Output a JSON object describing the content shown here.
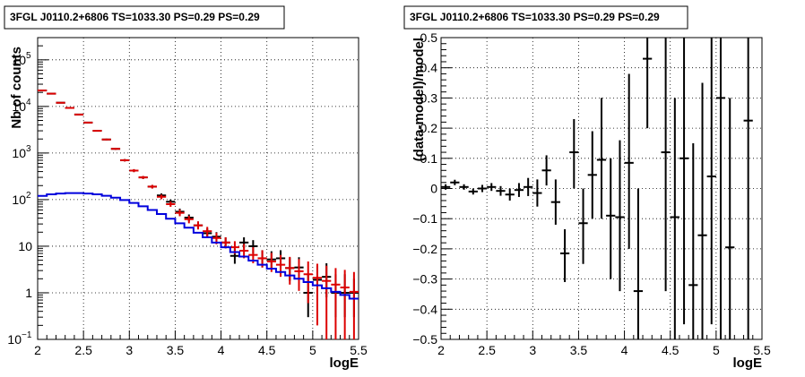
{
  "chart_data": [
    {
      "type": "scatter",
      "title": "3FGL J0110.2+6806 TS=1033.30 PS=0.29 PS=0.29",
      "xlabel": "logE",
      "ylabel": "Nb of counts",
      "xlim": [
        2,
        5.5
      ],
      "ylim": [
        0.1,
        300000
      ],
      "yscale": "log",
      "grid": true,
      "xticks": [
        "2",
        "2.5",
        "3",
        "3.5",
        "4",
        "4.5",
        "5",
        "5.5"
      ],
      "yticks": [
        {
          "value": 0.1,
          "label": "10",
          "exp": "−1"
        },
        {
          "value": 1,
          "label": "1",
          "exp": ""
        },
        {
          "value": 10,
          "label": "10",
          "exp": ""
        },
        {
          "value": 100,
          "label": "10",
          "exp": "2"
        },
        {
          "value": 1000,
          "label": "10",
          "exp": "3"
        },
        {
          "value": 10000,
          "label": "10",
          "exp": "4"
        },
        {
          "value": 100000,
          "label": "10",
          "exp": "5"
        }
      ],
      "series": [
        {
          "color": "#000000",
          "style": "points",
          "points": [
            [
              2.05,
              22000,
              22300,
              21700
            ],
            [
              2.15,
              18800,
              19100,
              18500
            ],
            [
              2.25,
              12000,
              12300,
              11700
            ],
            [
              2.35,
              9300,
              9500,
              9100
            ],
            [
              2.45,
              6700,
              6850,
              6550
            ],
            [
              2.55,
              4500,
              4620,
              4380
            ],
            [
              2.65,
              3000,
              3100,
              2900
            ],
            [
              2.75,
              1950,
              2030,
              1870
            ],
            [
              2.85,
              1230,
              1290,
              1170
            ],
            [
              2.95,
              700,
              740,
              660
            ],
            [
              3.05,
              420,
              450,
              390
            ],
            [
              3.15,
              300,
              322,
              278
            ],
            [
              3.25,
              190,
              207,
              173
            ],
            [
              3.35,
              123,
              136,
              110
            ],
            [
              3.45,
              90,
              101,
              79
            ],
            [
              3.55,
              55,
              64,
              47
            ],
            [
              3.65,
              41,
              48,
              34
            ],
            [
              3.75,
              28,
              34,
              23
            ],
            [
              3.85,
              19,
              24,
              15
            ],
            [
              3.95,
              16,
              20,
              12
            ],
            [
              4.05,
              12,
              15.5,
              9
            ],
            [
              4.15,
              6.2,
              8.8,
              4.2
            ],
            [
              4.25,
              12,
              15.5,
              9
            ],
            [
              4.35,
              10,
              13.5,
              7
            ],
            [
              4.45,
              5.5,
              8.2,
              3.5
            ],
            [
              4.55,
              5.2,
              7.8,
              3.2
            ],
            [
              4.65,
              5.5,
              8.2,
              3.5
            ],
            [
              4.75,
              3.4,
              5.7,
              1.8
            ],
            [
              4.85,
              3.5,
              5.8,
              1.9
            ],
            [
              4.95,
              1.0,
              2.5,
              0.3
            ],
            [
              5.05,
              1.9,
              3.8,
              0.7
            ],
            [
              5.15,
              2.2,
              4.3,
              0.8
            ],
            [
              5.25,
              1.0,
              2.5,
              0.3
            ],
            [
              5.35,
              1.0,
              2.5,
              0.3
            ],
            [
              5.45,
              1.0,
              2.0,
              0.3
            ]
          ]
        },
        {
          "color": "#dd0000",
          "style": "points",
          "points": [
            [
              2.05,
              22000,
              22300,
              21700
            ],
            [
              2.15,
              18800,
              19100,
              18500
            ],
            [
              2.25,
              12000,
              12300,
              11700
            ],
            [
              2.35,
              9300,
              9500,
              9100
            ],
            [
              2.45,
              6700,
              6850,
              6550
            ],
            [
              2.55,
              4500,
              4620,
              4380
            ],
            [
              2.65,
              3000,
              3100,
              2900
            ],
            [
              2.75,
              1950,
              2030,
              1870
            ],
            [
              2.85,
              1230,
              1290,
              1170
            ],
            [
              2.95,
              700,
              740,
              660
            ],
            [
              3.05,
              420,
              450,
              390
            ],
            [
              3.15,
              300,
              322,
              278
            ],
            [
              3.25,
              190,
              207,
              173
            ],
            [
              3.35,
              115,
              128,
              102
            ],
            [
              3.45,
              80,
              91,
              70
            ],
            [
              3.55,
              52,
              61,
              44
            ],
            [
              3.65,
              38,
              45,
              31
            ],
            [
              3.75,
              28,
              34,
              23
            ],
            [
              3.85,
              21,
              26,
              16
            ],
            [
              3.95,
              15,
              19.5,
              11
            ],
            [
              4.05,
              12,
              15.5,
              9
            ],
            [
              4.15,
              9.5,
              12.8,
              6.8
            ],
            [
              4.25,
              8.0,
              11.2,
              5.5
            ],
            [
              4.35,
              6.5,
              9.5,
              4.3
            ],
            [
              4.45,
              5.5,
              8.2,
              3.5
            ],
            [
              4.55,
              4.7,
              7.2,
              2.8
            ],
            [
              4.65,
              4.0,
              6.5,
              2.2
            ],
            [
              4.75,
              3.4,
              5.9,
              1.5
            ],
            [
              4.85,
              2.9,
              5.3,
              1.1
            ],
            [
              4.95,
              2.5,
              4.7,
              0.6
            ],
            [
              5.05,
              2.1,
              4.2,
              0.2
            ],
            [
              5.15,
              1.8,
              3.8,
              0.1
            ],
            [
              5.25,
              1.5,
              3.4,
              0.1
            ],
            [
              5.35,
              1.3,
              3.1,
              0.1
            ],
            [
              5.45,
              1.05,
              2.8,
              0.1
            ]
          ]
        },
        {
          "color": "#0000dd",
          "style": "step",
          "points": [
            [
              2.0,
              120
            ],
            [
              2.1,
              130
            ],
            [
              2.2,
              135
            ],
            [
              2.3,
              138
            ],
            [
              2.4,
              138
            ],
            [
              2.5,
              135
            ],
            [
              2.6,
              130
            ],
            [
              2.7,
              121
            ],
            [
              2.8,
              110
            ],
            [
              2.9,
              98
            ],
            [
              3.0,
              85
            ],
            [
              3.1,
              72
            ],
            [
              3.2,
              60
            ],
            [
              3.3,
              49
            ],
            [
              3.4,
              39
            ],
            [
              3.5,
              31
            ],
            [
              3.6,
              25
            ],
            [
              3.7,
              19.5
            ],
            [
              3.8,
              15.5
            ],
            [
              3.9,
              12
            ],
            [
              4.0,
              9.5
            ],
            [
              4.1,
              7.5
            ],
            [
              4.2,
              6
            ],
            [
              4.3,
              4.9
            ],
            [
              4.4,
              4
            ],
            [
              4.5,
              3.3
            ],
            [
              4.6,
              2.8
            ],
            [
              4.7,
              2.35
            ],
            [
              4.8,
              2.0
            ],
            [
              4.9,
              1.7
            ],
            [
              5.0,
              1.45
            ],
            [
              5.1,
              1.25
            ],
            [
              5.2,
              1.05
            ],
            [
              5.3,
              0.9
            ],
            [
              5.4,
              0.75
            ]
          ]
        }
      ]
    },
    {
      "type": "scatter",
      "title": "3FGL J0110.2+6806 TS=1033.30 PS=0.29 PS=0.29",
      "xlabel": "logE",
      "ylabel": "(data-model)/model",
      "xlim": [
        2,
        5.5
      ],
      "ylim": [
        -0.5,
        0.5
      ],
      "grid": true,
      "xticks": [
        "2",
        "2.5",
        "3",
        "3.5",
        "4",
        "4.5",
        "5",
        "5.5"
      ],
      "yticks": [
        "−0.5",
        "−0.4",
        "−0.3",
        "−0.2",
        "−0.1",
        "0",
        "0.1",
        "0.2",
        "0.3",
        "0.4",
        "0.5"
      ],
      "series": [
        {
          "color": "#000000",
          "style": "points",
          "points": [
            [
              2.05,
              0.005,
              0.014,
              -0.004
            ],
            [
              2.15,
              0.02,
              0.029,
              0.011
            ],
            [
              2.25,
              0.005,
              0.014,
              -0.004
            ],
            [
              2.35,
              -0.01,
              0.0,
              -0.02
            ],
            [
              2.45,
              0.0,
              0.012,
              -0.012
            ],
            [
              2.55,
              0.005,
              0.018,
              -0.008
            ],
            [
              2.65,
              -0.008,
              0.008,
              -0.024
            ],
            [
              2.75,
              -0.02,
              0.0,
              -0.04
            ],
            [
              2.85,
              -0.005,
              0.018,
              -0.028
            ],
            [
              2.95,
              0.005,
              0.035,
              -0.025
            ],
            [
              3.05,
              -0.015,
              0.03,
              -0.06
            ],
            [
              3.15,
              0.06,
              0.11,
              0.01
            ],
            [
              3.25,
              -0.045,
              0.03,
              -0.12
            ],
            [
              3.35,
              -0.215,
              -0.135,
              -0.31
            ],
            [
              3.45,
              0.12,
              0.23,
              0.0
            ],
            [
              3.55,
              -0.115,
              0.0,
              -0.25
            ],
            [
              3.65,
              0.045,
              0.19,
              -0.1
            ],
            [
              3.75,
              0.095,
              0.3,
              -0.1
            ],
            [
              3.85,
              -0.09,
              0.1,
              -0.3
            ],
            [
              3.95,
              -0.095,
              0.16,
              -0.34
            ],
            [
              4.05,
              0.085,
              0.38,
              -0.2
            ],
            [
              4.15,
              -0.34,
              0.0,
              -0.5
            ],
            [
              4.25,
              0.43,
              0.5,
              0.2
            ],
            [
              4.45,
              0.12,
              0.5,
              -0.34
            ],
            [
              4.55,
              -0.095,
              0.3,
              -0.5
            ],
            [
              4.65,
              0.1,
              0.5,
              -0.45
            ],
            [
              4.75,
              -0.32,
              0.15,
              -0.5
            ],
            [
              4.85,
              -0.155,
              0.35,
              -0.5
            ],
            [
              4.95,
              0.04,
              0.5,
              -0.45
            ],
            [
              5.05,
              0.3,
              0.5,
              -0.5
            ],
            [
              5.15,
              -0.195,
              0.3,
              -0.5
            ],
            [
              5.35,
              0.225,
              0.5,
              -0.5
            ]
          ]
        }
      ]
    }
  ]
}
